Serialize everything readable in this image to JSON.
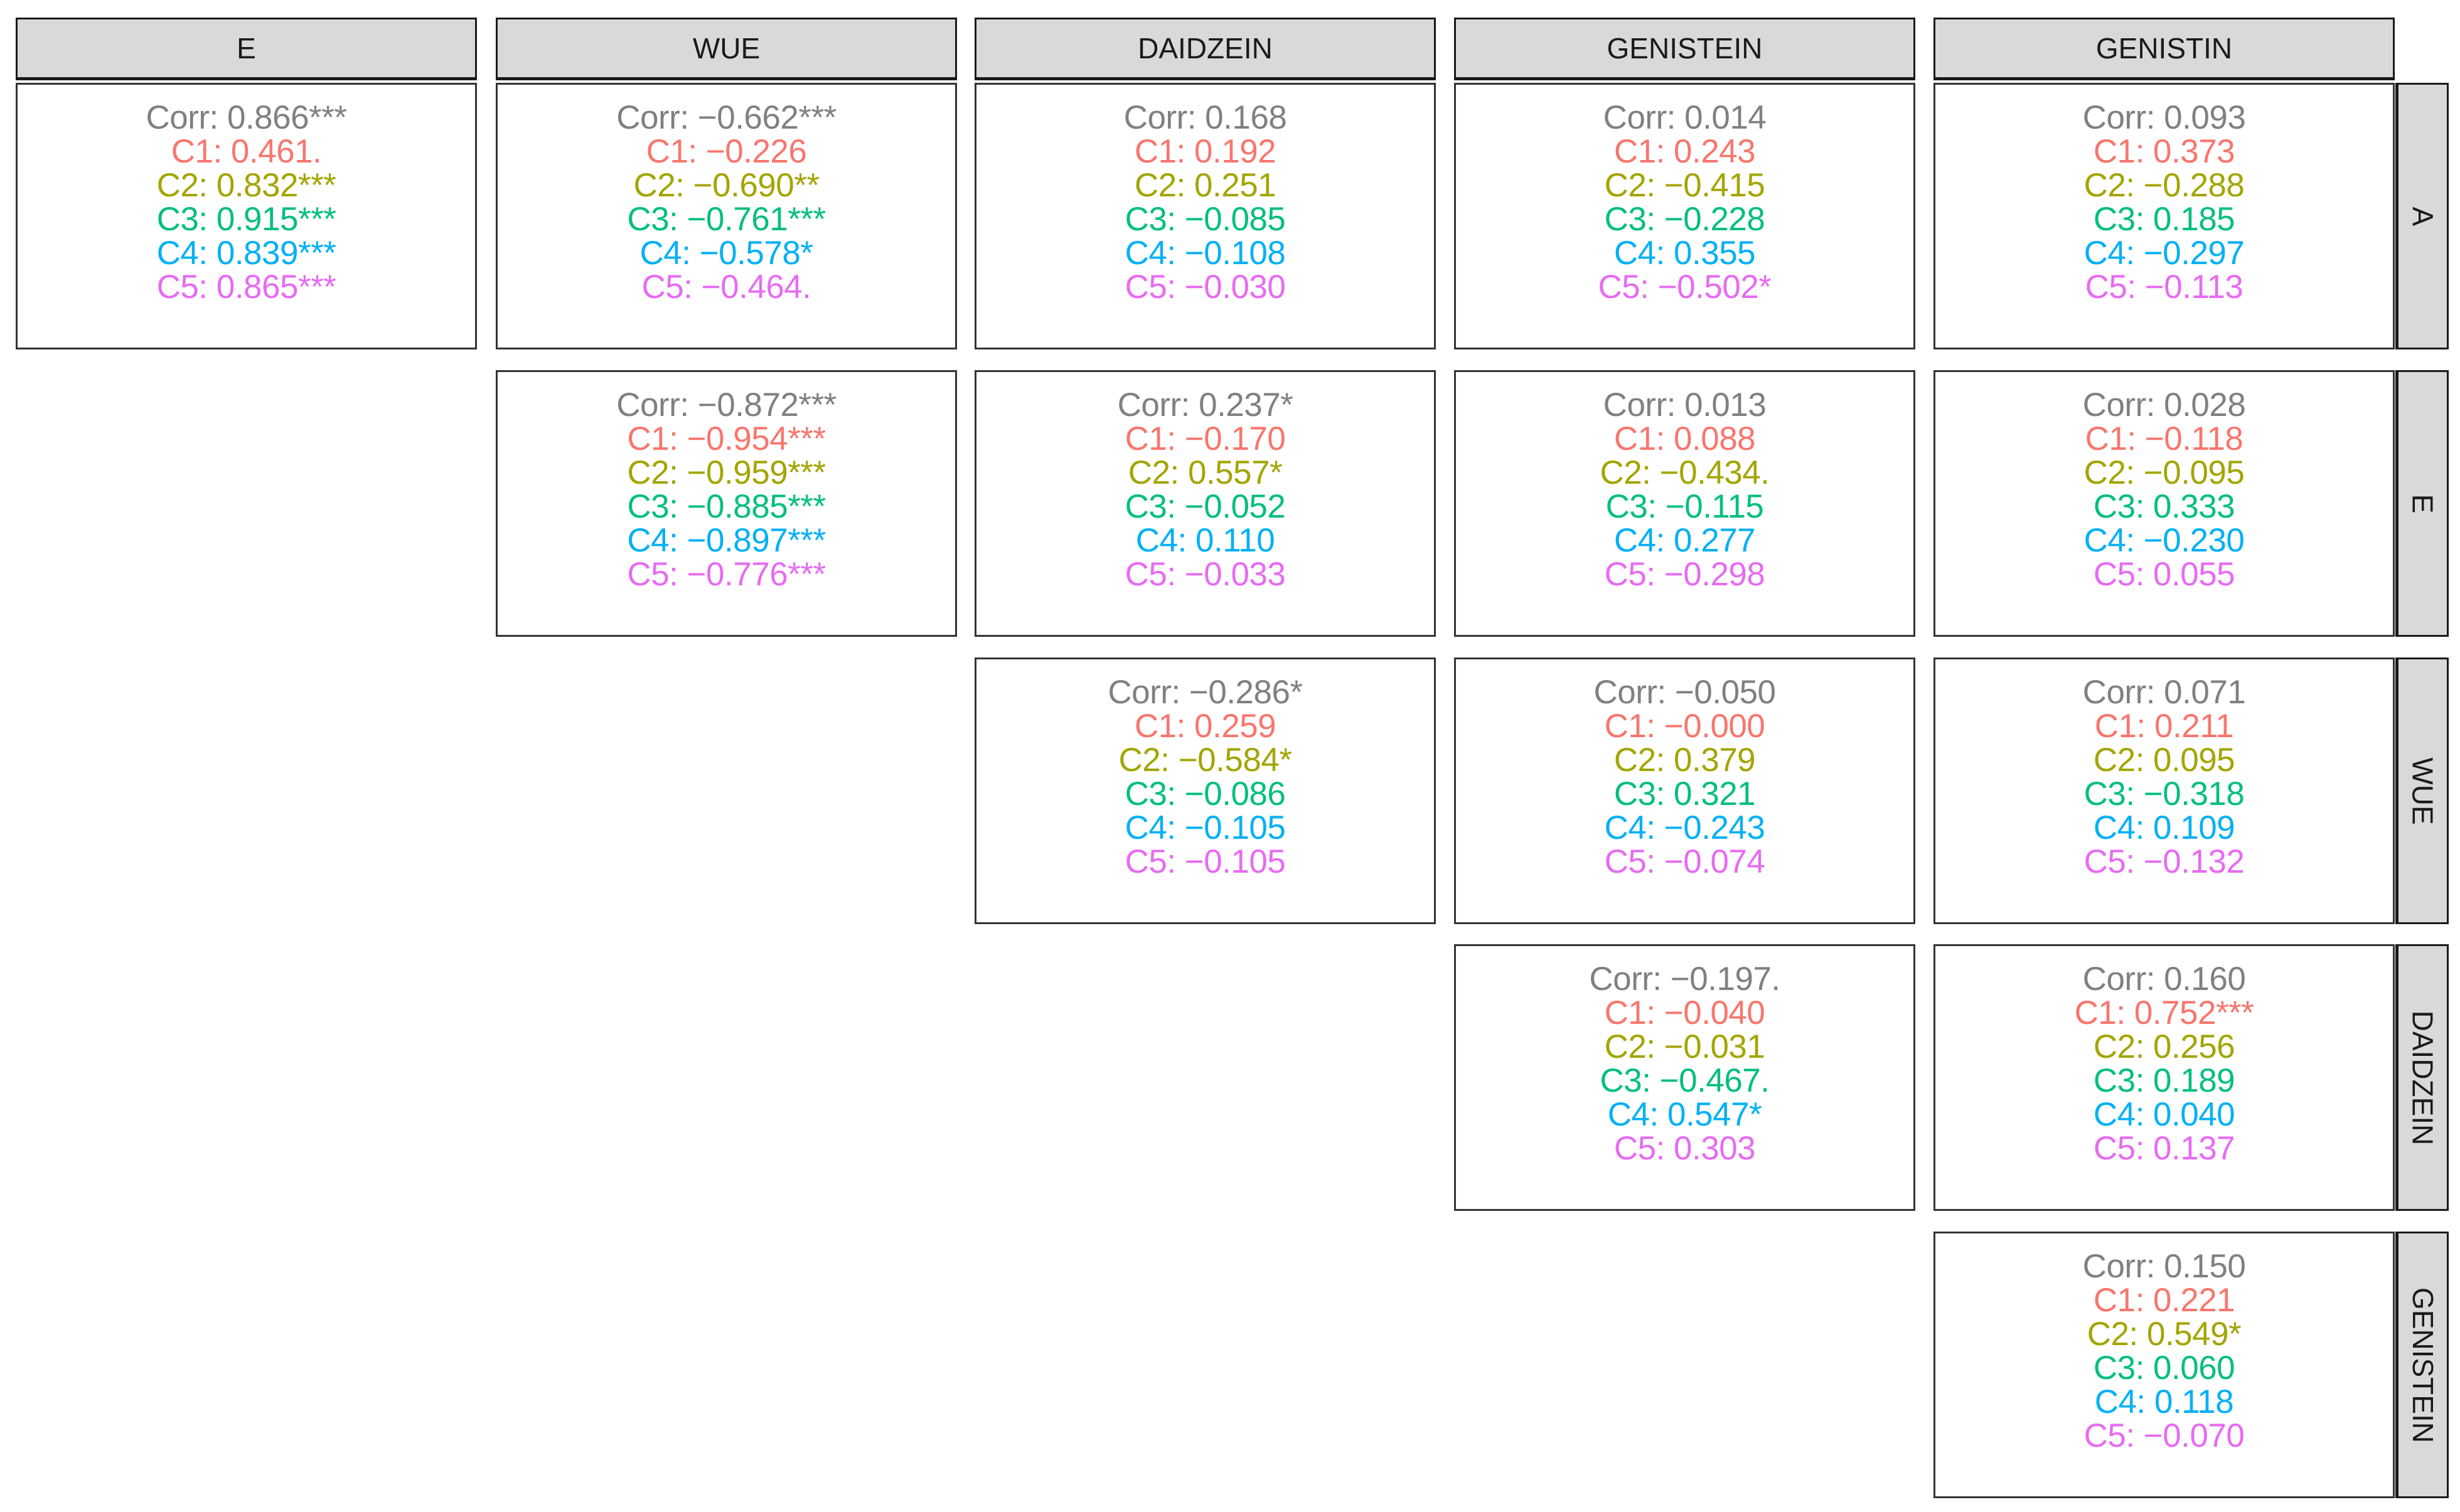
{
  "chart_data": {
    "type": "table",
    "columns": [
      "E",
      "WUE",
      "DAIDZEIN",
      "GENISTEIN",
      "GENISTIN"
    ],
    "rows": [
      "A",
      "E",
      "WUE",
      "DAIDZEIN",
      "GENISTEIN"
    ],
    "group_colors": {
      "Corr": "#808080",
      "C1": "#F8766D",
      "C2": "#A3A500",
      "C3": "#00BF7D",
      "C4": "#00B0F6",
      "C5": "#E76BF3"
    },
    "cells": [
      {
        "row": "A",
        "col": "E",
        "lines": [
          {
            "group": "Corr",
            "text": "Corr: 0.866***"
          },
          {
            "group": "C1",
            "text": "C1: 0.461."
          },
          {
            "group": "C2",
            "text": "C2: 0.832***"
          },
          {
            "group": "C3",
            "text": "C3: 0.915***"
          },
          {
            "group": "C4",
            "text": "C4: 0.839***"
          },
          {
            "group": "C5",
            "text": "C5: 0.865***"
          }
        ]
      },
      {
        "row": "A",
        "col": "WUE",
        "lines": [
          {
            "group": "Corr",
            "text": "Corr: −0.662***"
          },
          {
            "group": "C1",
            "text": "C1: −0.226"
          },
          {
            "group": "C2",
            "text": "C2: −0.690**"
          },
          {
            "group": "C3",
            "text": "C3: −0.761***"
          },
          {
            "group": "C4",
            "text": "C4: −0.578*"
          },
          {
            "group": "C5",
            "text": "C5: −0.464."
          }
        ]
      },
      {
        "row": "A",
        "col": "DAIDZEIN",
        "lines": [
          {
            "group": "Corr",
            "text": "Corr: 0.168"
          },
          {
            "group": "C1",
            "text": "C1: 0.192"
          },
          {
            "group": "C2",
            "text": "C2: 0.251"
          },
          {
            "group": "C3",
            "text": "C3: −0.085"
          },
          {
            "group": "C4",
            "text": "C4: −0.108"
          },
          {
            "group": "C5",
            "text": "C5: −0.030"
          }
        ]
      },
      {
        "row": "A",
        "col": "GENISTEIN",
        "lines": [
          {
            "group": "Corr",
            "text": "Corr: 0.014"
          },
          {
            "group": "C1",
            "text": "C1: 0.243"
          },
          {
            "group": "C2",
            "text": "C2: −0.415"
          },
          {
            "group": "C3",
            "text": "C3: −0.228"
          },
          {
            "group": "C4",
            "text": "C4: 0.355"
          },
          {
            "group": "C5",
            "text": "C5: −0.502*"
          }
        ]
      },
      {
        "row": "A",
        "col": "GENISTIN",
        "lines": [
          {
            "group": "Corr",
            "text": "Corr: 0.093"
          },
          {
            "group": "C1",
            "text": "C1: 0.373"
          },
          {
            "group": "C2",
            "text": "C2: −0.288"
          },
          {
            "group": "C3",
            "text": "C3: 0.185"
          },
          {
            "group": "C4",
            "text": "C4: −0.297"
          },
          {
            "group": "C5",
            "text": "C5: −0.113"
          }
        ]
      },
      {
        "row": "E",
        "col": "WUE",
        "lines": [
          {
            "group": "Corr",
            "text": "Corr: −0.872***"
          },
          {
            "group": "C1",
            "text": "C1: −0.954***"
          },
          {
            "group": "C2",
            "text": "C2: −0.959***"
          },
          {
            "group": "C3",
            "text": "C3: −0.885***"
          },
          {
            "group": "C4",
            "text": "C4: −0.897***"
          },
          {
            "group": "C5",
            "text": "C5: −0.776***"
          }
        ]
      },
      {
        "row": "E",
        "col": "DAIDZEIN",
        "lines": [
          {
            "group": "Corr",
            "text": "Corr: 0.237*"
          },
          {
            "group": "C1",
            "text": "C1: −0.170"
          },
          {
            "group": "C2",
            "text": "C2: 0.557*"
          },
          {
            "group": "C3",
            "text": "C3: −0.052"
          },
          {
            "group": "C4",
            "text": "C4: 0.110"
          },
          {
            "group": "C5",
            "text": "C5: −0.033"
          }
        ]
      },
      {
        "row": "E",
        "col": "GENISTEIN",
        "lines": [
          {
            "group": "Corr",
            "text": "Corr: 0.013"
          },
          {
            "group": "C1",
            "text": "C1: 0.088"
          },
          {
            "group": "C2",
            "text": "C2: −0.434."
          },
          {
            "group": "C3",
            "text": "C3: −0.115"
          },
          {
            "group": "C4",
            "text": "C4: 0.277"
          },
          {
            "group": "C5",
            "text": "C5: −0.298"
          }
        ]
      },
      {
        "row": "E",
        "col": "GENISTIN",
        "lines": [
          {
            "group": "Corr",
            "text": "Corr: 0.028"
          },
          {
            "group": "C1",
            "text": "C1: −0.118"
          },
          {
            "group": "C2",
            "text": "C2: −0.095"
          },
          {
            "group": "C3",
            "text": "C3: 0.333"
          },
          {
            "group": "C4",
            "text": "C4: −0.230"
          },
          {
            "group": "C5",
            "text": "C5: 0.055"
          }
        ]
      },
      {
        "row": "WUE",
        "col": "DAIDZEIN",
        "lines": [
          {
            "group": "Corr",
            "text": "Corr: −0.286*"
          },
          {
            "group": "C1",
            "text": "C1: 0.259"
          },
          {
            "group": "C2",
            "text": "C2: −0.584*"
          },
          {
            "group": "C3",
            "text": "C3: −0.086"
          },
          {
            "group": "C4",
            "text": "C4: −0.105"
          },
          {
            "group": "C5",
            "text": "C5: −0.105"
          }
        ]
      },
      {
        "row": "WUE",
        "col": "GENISTEIN",
        "lines": [
          {
            "group": "Corr",
            "text": "Corr: −0.050"
          },
          {
            "group": "C1",
            "text": "C1: −0.000"
          },
          {
            "group": "C2",
            "text": "C2: 0.379"
          },
          {
            "group": "C3",
            "text": "C3: 0.321"
          },
          {
            "group": "C4",
            "text": "C4: −0.243"
          },
          {
            "group": "C5",
            "text": "C5: −0.074"
          }
        ]
      },
      {
        "row": "WUE",
        "col": "GENISTIN",
        "lines": [
          {
            "group": "Corr",
            "text": "Corr: 0.071"
          },
          {
            "group": "C1",
            "text": "C1: 0.211"
          },
          {
            "group": "C2",
            "text": "C2: 0.095"
          },
          {
            "group": "C3",
            "text": "C3: −0.318"
          },
          {
            "group": "C4",
            "text": "C4: 0.109"
          },
          {
            "group": "C5",
            "text": "C5: −0.132"
          }
        ]
      },
      {
        "row": "DAIDZEIN",
        "col": "GENISTEIN",
        "lines": [
          {
            "group": "Corr",
            "text": "Corr: −0.197."
          },
          {
            "group": "C1",
            "text": "C1: −0.040"
          },
          {
            "group": "C2",
            "text": "C2: −0.031"
          },
          {
            "group": "C3",
            "text": "C3: −0.467."
          },
          {
            "group": "C4",
            "text": "C4: 0.547*"
          },
          {
            "group": "C5",
            "text": "C5: 0.303"
          }
        ]
      },
      {
        "row": "DAIDZEIN",
        "col": "GENISTIN",
        "lines": [
          {
            "group": "Corr",
            "text": "Corr: 0.160"
          },
          {
            "group": "C1",
            "text": "C1: 0.752***"
          },
          {
            "group": "C2",
            "text": "C2: 0.256"
          },
          {
            "group": "C3",
            "text": "C3: 0.189"
          },
          {
            "group": "C4",
            "text": "C4: 0.040"
          },
          {
            "group": "C5",
            "text": "C5: 0.137"
          }
        ]
      },
      {
        "row": "GENISTEIN",
        "col": "GENISTIN",
        "lines": [
          {
            "group": "Corr",
            "text": "Corr: 0.150"
          },
          {
            "group": "C1",
            "text": "C1: 0.221"
          },
          {
            "group": "C2",
            "text": "C2: 0.549*"
          },
          {
            "group": "C3",
            "text": "C3: 0.060"
          },
          {
            "group": "C4",
            "text": "C4: 0.118"
          },
          {
            "group": "C5",
            "text": "C5: −0.070"
          }
        ]
      }
    ]
  }
}
